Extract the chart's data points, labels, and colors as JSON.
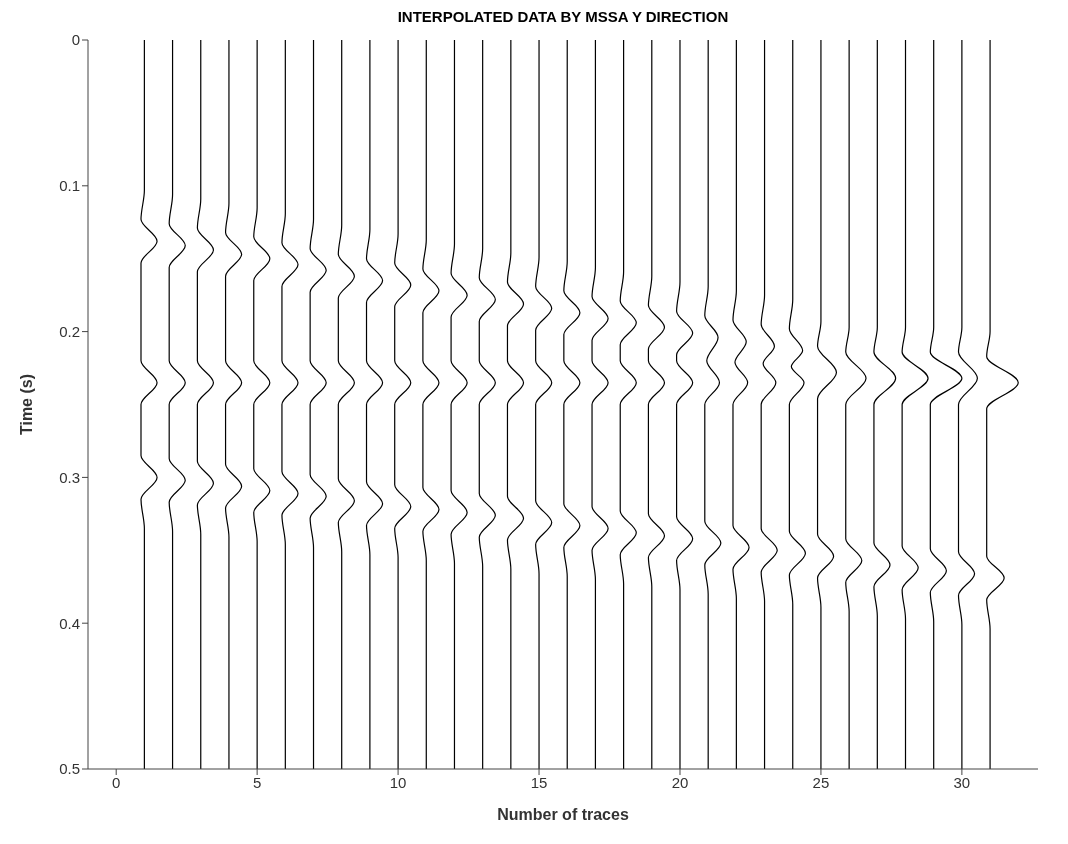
{
  "chart_data": {
    "type": "line",
    "title": "INTERPOLATED DATA BY MSSA Y DIRECTION",
    "xlabel": "Number of traces",
    "ylabel": "Time (s)",
    "xlim": [
      -1,
      32.7
    ],
    "xticks": [
      0,
      5,
      10,
      15,
      20,
      25,
      30
    ],
    "ylim": [
      0.5,
      0
    ],
    "yticks": [
      0,
      0.1,
      0.2,
      0.3,
      0.4,
      0.5
    ],
    "series": [
      {
        "color": "#000000",
        "x": [
          1,
          1,
          0.88,
          1.45,
          0.88,
          0.88,
          1.45,
          0.88,
          0.88,
          1.45,
          0.88,
          1,
          1
        ],
        "values": [
          0,
          0.103,
          0.123,
          0.138,
          0.153,
          0.22,
          0.235,
          0.25,
          0.285,
          0.3,
          0.315,
          0.335,
          0.5
        ]
      },
      {
        "color": "#000000",
        "x": [
          2,
          2,
          1.88,
          2.45,
          1.88,
          1.88,
          2.45,
          1.88,
          1.88,
          2.45,
          1.88,
          2,
          2
        ],
        "values": [
          0,
          0.106,
          0.126,
          0.141,
          0.156,
          0.22,
          0.235,
          0.25,
          0.287,
          0.302,
          0.317,
          0.337,
          0.5
        ]
      },
      {
        "color": "#000000",
        "x": [
          3,
          3,
          2.88,
          3.45,
          2.88,
          2.88,
          3.45,
          2.88,
          2.88,
          3.45,
          2.88,
          3,
          3
        ],
        "values": [
          0,
          0.109,
          0.129,
          0.144,
          0.159,
          0.22,
          0.235,
          0.25,
          0.289,
          0.304,
          0.319,
          0.339,
          0.5
        ]
      },
      {
        "color": "#000000",
        "x": [
          4,
          4,
          3.88,
          4.45,
          3.88,
          3.88,
          4.45,
          3.88,
          3.88,
          4.45,
          3.88,
          4,
          4
        ],
        "values": [
          0,
          0.112,
          0.132,
          0.147,
          0.162,
          0.22,
          0.235,
          0.25,
          0.291,
          0.306,
          0.321,
          0.341,
          0.5
        ]
      },
      {
        "color": "#000000",
        "x": [
          5,
          5,
          4.88,
          5.45,
          4.88,
          4.88,
          5.45,
          4.88,
          4.88,
          5.45,
          4.88,
          5,
          5
        ],
        "values": [
          0,
          0.115,
          0.135,
          0.15,
          0.165,
          0.22,
          0.235,
          0.25,
          0.294,
          0.309,
          0.324,
          0.344,
          0.5
        ]
      },
      {
        "color": "#000000",
        "x": [
          6,
          6,
          5.88,
          6.45,
          5.88,
          5.88,
          6.45,
          5.88,
          5.88,
          6.45,
          5.88,
          6,
          6
        ],
        "values": [
          0,
          0.119,
          0.139,
          0.154,
          0.169,
          0.22,
          0.235,
          0.25,
          0.296,
          0.311,
          0.326,
          0.346,
          0.5
        ]
      },
      {
        "color": "#000000",
        "x": [
          7,
          7,
          6.88,
          7.45,
          6.88,
          6.88,
          7.45,
          6.88,
          6.88,
          7.45,
          6.88,
          7,
          7
        ],
        "values": [
          0,
          0.123,
          0.143,
          0.158,
          0.173,
          0.22,
          0.235,
          0.25,
          0.298,
          0.313,
          0.328,
          0.348,
          0.5
        ]
      },
      {
        "color": "#000000",
        "x": [
          8,
          8,
          7.88,
          8.45,
          7.88,
          7.88,
          8.45,
          7.88,
          7.88,
          8.45,
          7.88,
          8,
          8
        ],
        "values": [
          0,
          0.127,
          0.147,
          0.162,
          0.177,
          0.22,
          0.235,
          0.25,
          0.301,
          0.316,
          0.331,
          0.351,
          0.5
        ]
      },
      {
        "color": "#000000",
        "x": [
          9,
          9,
          8.88,
          9.45,
          8.88,
          8.88,
          9.45,
          8.88,
          8.88,
          9.45,
          8.88,
          9,
          9
        ],
        "values": [
          0,
          0.13,
          0.15,
          0.165,
          0.18,
          0.22,
          0.235,
          0.25,
          0.303,
          0.318,
          0.333,
          0.353,
          0.5
        ]
      },
      {
        "color": "#000000",
        "x": [
          10,
          10,
          9.88,
          10.45,
          9.88,
          9.88,
          10.45,
          9.88,
          9.88,
          10.45,
          9.88,
          10,
          10
        ],
        "values": [
          0,
          0.133,
          0.153,
          0.168,
          0.183,
          0.22,
          0.235,
          0.25,
          0.305,
          0.32,
          0.335,
          0.355,
          0.5
        ]
      },
      {
        "color": "#000000",
        "x": [
          11,
          11,
          10.88,
          11.45,
          10.88,
          10.88,
          11.45,
          10.88,
          10.88,
          11.45,
          10.88,
          11,
          11
        ],
        "values": [
          0,
          0.137,
          0.157,
          0.172,
          0.187,
          0.22,
          0.235,
          0.25,
          0.307,
          0.322,
          0.337,
          0.357,
          0.5
        ]
      },
      {
        "color": "#000000",
        "x": [
          12,
          12,
          11.88,
          12.45,
          11.88,
          11.88,
          12.45,
          11.88,
          11.88,
          12.45,
          11.88,
          12,
          12
        ],
        "values": [
          0,
          0.14,
          0.16,
          0.175,
          0.19,
          0.22,
          0.235,
          0.25,
          0.309,
          0.324,
          0.339,
          0.359,
          0.5
        ]
      },
      {
        "color": "#000000",
        "x": [
          13,
          13,
          12.88,
          13.45,
          12.88,
          12.88,
          13.45,
          12.88,
          12.88,
          13.45,
          12.88,
          13,
          13
        ],
        "values": [
          0,
          0.143,
          0.163,
          0.178,
          0.193,
          0.22,
          0.235,
          0.25,
          0.311,
          0.326,
          0.341,
          0.361,
          0.5
        ]
      },
      {
        "color": "#000000",
        "x": [
          14,
          14,
          13.88,
          14.45,
          13.88,
          13.88,
          14.45,
          13.88,
          13.88,
          14.45,
          13.88,
          14,
          14
        ],
        "values": [
          0,
          0.146,
          0.166,
          0.181,
          0.196,
          0.22,
          0.235,
          0.25,
          0.313,
          0.328,
          0.343,
          0.363,
          0.5
        ]
      },
      {
        "color": "#000000",
        "x": [
          15,
          15,
          14.88,
          15.45,
          14.88,
          14.88,
          15.45,
          14.88,
          14.88,
          15.45,
          14.88,
          15,
          15
        ],
        "values": [
          0,
          0.149,
          0.169,
          0.184,
          0.199,
          0.22,
          0.235,
          0.25,
          0.316,
          0.331,
          0.346,
          0.366,
          0.5
        ]
      },
      {
        "color": "#000000",
        "x": [
          16,
          16,
          15.88,
          16.45,
          15.88,
          15.88,
          16.45,
          15.88,
          15.88,
          16.45,
          15.88,
          16,
          16
        ],
        "values": [
          0,
          0.152,
          0.172,
          0.187,
          0.202,
          0.22,
          0.235,
          0.25,
          0.318,
          0.333,
          0.348,
          0.368,
          0.5
        ]
      },
      {
        "color": "#000000",
        "x": [
          17,
          17,
          16.88,
          17.45,
          16.88,
          16.88,
          17.45,
          16.88,
          16.88,
          17.45,
          16.88,
          17,
          17
        ],
        "values": [
          0,
          0.156,
          0.176,
          0.191,
          0.206,
          0.22,
          0.235,
          0.25,
          0.32,
          0.335,
          0.35,
          0.37,
          0.5
        ]
      },
      {
        "color": "#000000",
        "x": [
          18,
          18,
          17.88,
          18.45,
          17.88,
          17.88,
          18.45,
          17.88,
          17.88,
          18.45,
          17.88,
          18,
          18
        ],
        "values": [
          0,
          0.159,
          0.179,
          0.194,
          0.209,
          0.22,
          0.235,
          0.25,
          0.323,
          0.338,
          0.353,
          0.373,
          0.5
        ]
      },
      {
        "color": "#000000",
        "x": [
          19,
          19,
          18.88,
          19.45,
          18.88,
          18.88,
          19.45,
          18.88,
          18.88,
          19.45,
          18.88,
          19,
          19
        ],
        "values": [
          0,
          0.162,
          0.182,
          0.197,
          0.212,
          0.22,
          0.235,
          0.25,
          0.325,
          0.34,
          0.355,
          0.375,
          0.5
        ]
      },
      {
        "color": "#000000",
        "x": [
          20,
          20,
          19.88,
          20.45,
          19.88,
          19.88,
          20.45,
          19.88,
          19.88,
          20.45,
          19.88,
          20,
          20
        ],
        "values": [
          0,
          0.166,
          0.186,
          0.201,
          0.216,
          0.22,
          0.235,
          0.25,
          0.327,
          0.342,
          0.357,
          0.377,
          0.5
        ]
      },
      {
        "color": "#000000",
        "x": [
          21,
          21,
          20.88,
          21.35,
          20.95,
          21.4,
          20.88,
          20.88,
          21.45,
          20.88,
          21,
          21
        ],
        "values": [
          0,
          0.169,
          0.189,
          0.204,
          0.22,
          0.235,
          0.25,
          0.33,
          0.345,
          0.36,
          0.38,
          0.5
        ]
      },
      {
        "color": "#000000",
        "x": [
          22,
          22,
          21.88,
          22.35,
          21.95,
          22.4,
          21.88,
          21.88,
          22.45,
          21.88,
          22,
          22
        ],
        "values": [
          0,
          0.172,
          0.192,
          0.207,
          0.221,
          0.235,
          0.25,
          0.333,
          0.348,
          0.363,
          0.383,
          0.5
        ]
      },
      {
        "color": "#000000",
        "x": [
          23,
          23,
          22.88,
          23.35,
          22.95,
          23.4,
          22.88,
          22.88,
          23.45,
          22.88,
          23,
          23
        ],
        "values": [
          0,
          0.175,
          0.195,
          0.21,
          0.222,
          0.235,
          0.25,
          0.335,
          0.35,
          0.365,
          0.385,
          0.5
        ]
      },
      {
        "color": "#000000",
        "x": [
          24,
          24,
          23.88,
          24.35,
          23.95,
          24.4,
          23.88,
          23.88,
          24.45,
          23.88,
          24,
          24
        ],
        "values": [
          0,
          0.178,
          0.198,
          0.213,
          0.224,
          0.235,
          0.25,
          0.337,
          0.352,
          0.367,
          0.387,
          0.5
        ]
      },
      {
        "color": "#000000",
        "x": [
          25,
          25,
          24.88,
          25.55,
          24.88,
          24.88,
          25.45,
          24.88,
          25,
          25
        ],
        "values": [
          0,
          0.193,
          0.21,
          0.228,
          0.246,
          0.339,
          0.354,
          0.369,
          0.389,
          0.5
        ]
      },
      {
        "color": "#000000",
        "x": [
          26,
          26,
          25.88,
          26.6,
          25.88,
          25.88,
          26.45,
          25.88,
          26,
          26
        ],
        "values": [
          0,
          0.197,
          0.214,
          0.232,
          0.25,
          0.342,
          0.357,
          0.372,
          0.392,
          0.5
        ]
      },
      {
        "color": "#000000",
        "x": [
          27,
          27,
          26.88,
          27.65,
          26.88,
          26.88,
          27.45,
          26.88,
          27,
          27
        ],
        "values": [
          0,
          0.197,
          0.214,
          0.232,
          0.25,
          0.345,
          0.36,
          0.375,
          0.395,
          0.5
        ]
      },
      {
        "color": "#000000",
        "x": [
          28,
          28,
          27.88,
          28.8,
          27.88,
          27.88,
          28.45,
          27.88,
          28,
          28
        ],
        "values": [
          0,
          0.197,
          0.214,
          0.232,
          0.25,
          0.347,
          0.362,
          0.377,
          0.397,
          0.5
        ]
      },
      {
        "color": "#000000",
        "x": [
          29,
          29,
          28.88,
          30,
          28.88,
          28.88,
          29.45,
          28.88,
          29,
          29
        ],
        "values": [
          0,
          0.197,
          0.214,
          0.232,
          0.25,
          0.349,
          0.364,
          0.379,
          0.399,
          0.5
        ]
      },
      {
        "color": "#000000",
        "x": [
          30,
          30,
          29.88,
          30.55,
          29.88,
          29.88,
          30.45,
          29.88,
          30,
          30
        ],
        "values": [
          0,
          0.197,
          0.214,
          0.232,
          0.25,
          0.351,
          0.366,
          0.381,
          0.401,
          0.5
        ]
      },
      {
        "color": "#000000",
        "x": [
          31,
          31,
          30.88,
          32,
          30.88,
          30.88,
          31.5,
          30.88,
          31,
          31
        ],
        "values": [
          0,
          0.2,
          0.217,
          0.235,
          0.253,
          0.354,
          0.369,
          0.384,
          0.404,
          0.5
        ]
      }
    ]
  }
}
